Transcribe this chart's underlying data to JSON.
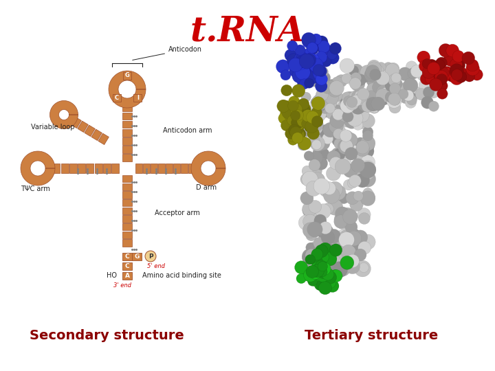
{
  "title": "t.RNA",
  "title_color": "#cc0000",
  "title_fontsize": 36,
  "left_label": "Secondary structure",
  "right_label": "Tertiary structure",
  "label_color": "#8b0000",
  "label_fontsize": 14,
  "bg_color": "#ffffff",
  "trna_color": "#CD7F40",
  "trna_edge": "#A0522D",
  "ann_color": "#222222",
  "ann_fs": 7,
  "red_label_color": "#cc0000"
}
